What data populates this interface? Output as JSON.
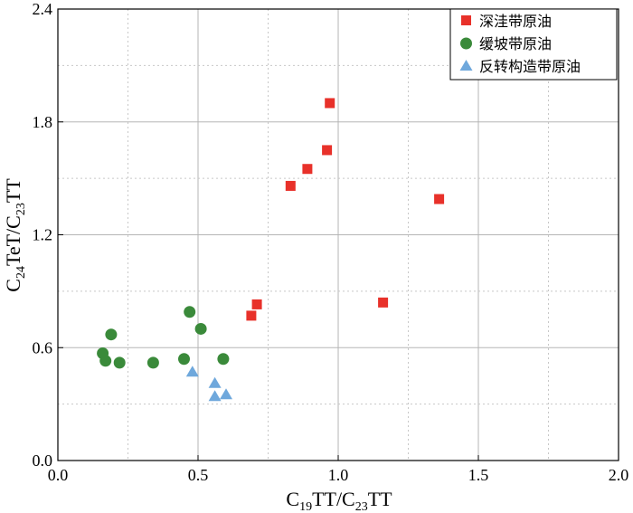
{
  "chart_data": {
    "type": "scatter",
    "xlabel": "C19TT/C23TT",
    "xlabel_parts": {
      "base1": "C",
      "sub1": "19",
      "mid": "TT/C",
      "sub2": "23",
      "end": "TT"
    },
    "ylabel": "C24TeT/C23TT",
    "ylabel_parts": {
      "base1": "C",
      "sub1": "24",
      "mid": "TeT/C",
      "sub2": "23",
      "end": "TT"
    },
    "xlim": [
      0,
      2
    ],
    "ylim": [
      0,
      2.4
    ],
    "xticks": [
      0,
      0.5,
      1.0,
      1.5,
      2.0
    ],
    "xtick_labels": [
      "0.0",
      "0.5",
      "1.0",
      "1.5",
      "2.0"
    ],
    "yticks": [
      0,
      0.6,
      1.2,
      1.8,
      2.4
    ],
    "ytick_labels": [
      "0.0",
      "0.6",
      "1.2",
      "1.8",
      "2.4"
    ],
    "grid": true,
    "legend_position": "top-right",
    "series": [
      {
        "name": "深洼带原油",
        "marker": "square",
        "color": "#e8312a",
        "points": [
          [
            0.69,
            0.77
          ],
          [
            0.71,
            0.83
          ],
          [
            0.83,
            1.46
          ],
          [
            0.89,
            1.55
          ],
          [
            0.96,
            1.65
          ],
          [
            0.97,
            1.9
          ],
          [
            1.16,
            0.84
          ],
          [
            1.36,
            1.39
          ]
        ]
      },
      {
        "name": "缓坡带原油",
        "marker": "circle",
        "color": "#3a8a3a",
        "points": [
          [
            0.16,
            0.57
          ],
          [
            0.17,
            0.53
          ],
          [
            0.19,
            0.67
          ],
          [
            0.22,
            0.52
          ],
          [
            0.34,
            0.52
          ],
          [
            0.45,
            0.54
          ],
          [
            0.47,
            0.79
          ],
          [
            0.51,
            0.7
          ],
          [
            0.59,
            0.54
          ]
        ]
      },
      {
        "name": "反转构造带原油",
        "marker": "triangle",
        "color": "#6fa8dc",
        "points": [
          [
            0.48,
            0.47
          ],
          [
            0.56,
            0.41
          ],
          [
            0.56,
            0.34
          ],
          [
            0.6,
            0.35
          ]
        ]
      }
    ]
  }
}
